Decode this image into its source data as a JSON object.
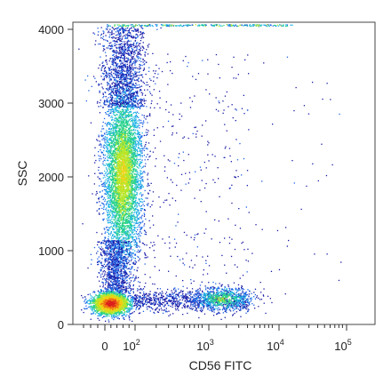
{
  "chart_data": {
    "type": "scatter",
    "subtype": "flow-cytometry-density-dot-plot",
    "title": "",
    "xlabel": "CD56 FITC",
    "ylabel": "SSC",
    "x_scale": "biexponential (linear near 0, log above)",
    "y_scale": "linear",
    "ylim": [
      0,
      4100
    ],
    "y_ticks": [
      {
        "value": 0,
        "label": "0"
      },
      {
        "value": 1000,
        "label": "1000"
      },
      {
        "value": 2000,
        "label": "2000"
      },
      {
        "value": 3000,
        "label": "3000"
      },
      {
        "value": 4000,
        "label": "4000"
      }
    ],
    "x_ticks": [
      {
        "value": 0,
        "base": "0",
        "exp": ""
      },
      {
        "value": 100,
        "base": "10",
        "exp": "2"
      },
      {
        "value": 1000,
        "base": "10",
        "exp": "3"
      },
      {
        "value": 10000,
        "base": "10",
        "exp": "4"
      },
      {
        "value": 100000,
        "base": "10",
        "exp": "5"
      }
    ],
    "grid": false,
    "legend": "none",
    "colormap": [
      "#1a1aa6",
      "#1e64e6",
      "#1eb4e6",
      "#28d28c",
      "#b4e628",
      "#f0d214",
      "#f07814",
      "#dc1e1e"
    ],
    "populations": [
      {
        "name": "",
        "x_center": 30,
        "y_center": 2100,
        "x_range": [
          0,
          120
        ],
        "y_range": [
          500,
          3900
        ],
        "density": "high"
      },
      {
        "name": "",
        "x_center": 20,
        "y_center": 300,
        "x_range": [
          -20,
          150
        ],
        "y_range": [
          150,
          550
        ],
        "density": "very high"
      },
      {
        "name": "",
        "x_center": 1500,
        "y_center": 330,
        "x_range": [
          200,
          5000
        ],
        "y_range": [
          200,
          500
        ],
        "density": "medium"
      },
      {
        "name": "",
        "x_center": 300,
        "y_center": 1500,
        "x_range": [
          150,
          3000
        ],
        "y_range": [
          300,
          3600
        ],
        "density": "sparse"
      }
    ]
  }
}
